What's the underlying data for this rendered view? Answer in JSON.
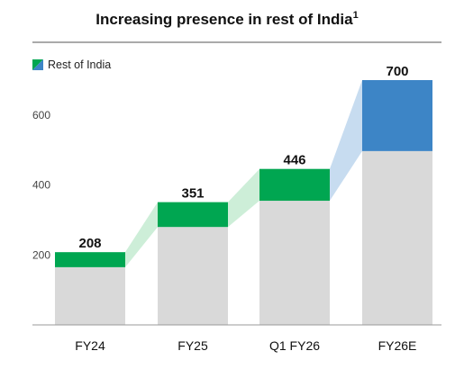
{
  "chart_data": {
    "type": "bar",
    "title": "Increasing presence in rest of India",
    "title_superscript": "1",
    "categories": [
      "FY24",
      "FY25",
      "Q1 FY26",
      "FY26E"
    ],
    "totals": [
      208,
      351,
      446,
      700
    ],
    "series": [
      {
        "name": "",
        "values": [
          165,
          280,
          355,
          497
        ],
        "color": "#d9d9d9"
      },
      {
        "name": "Rest of India",
        "values": [
          43,
          71,
          91,
          203
        ],
        "color": "#00a651",
        "last_color": "#3d85c6"
      }
    ],
    "ylim": [
      0,
      720
    ],
    "yticks": [
      200,
      400,
      600
    ],
    "legend": {
      "label": "Rest of India",
      "position": "top-left"
    },
    "colors": {
      "connector_green": "#cdeed8",
      "connector_blue": "#c7dcf0",
      "axis": "#999999",
      "divider": "#555555"
    }
  }
}
